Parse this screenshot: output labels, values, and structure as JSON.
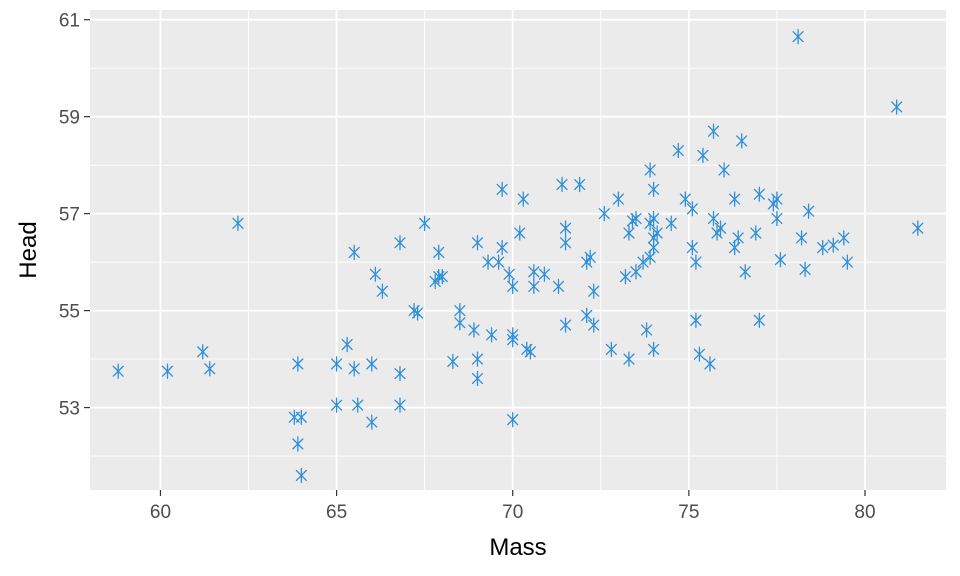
{
  "chart_data": {
    "type": "scatter",
    "title": "",
    "xlabel": "Mass",
    "ylabel": "Head",
    "xlim": [
      58.0,
      82.3
    ],
    "ylim": [
      51.3,
      61.2
    ],
    "x_ticks": [
      60,
      65,
      70,
      75,
      80
    ],
    "y_ticks": [
      53,
      55,
      57,
      59,
      61
    ],
    "x_minor": [
      57.5,
      62.5,
      67.5,
      72.5,
      77.5
    ],
    "y_minor": [
      52,
      54,
      56,
      58,
      60
    ],
    "grid": true,
    "marker": "asterisk",
    "colors": {
      "panel": "#ebebeb",
      "grid": "#ffffff",
      "point": "#2f8fd8",
      "tick_text": "#4d4d4d"
    },
    "points": [
      [
        58.8,
        53.75
      ],
      [
        60.2,
        53.75
      ],
      [
        61.2,
        54.15
      ],
      [
        61.4,
        53.8
      ],
      [
        62.2,
        56.8
      ],
      [
        63.8,
        52.8
      ],
      [
        63.9,
        53.9
      ],
      [
        63.9,
        52.25
      ],
      [
        64.0,
        52.8
      ],
      [
        64.0,
        51.6
      ],
      [
        65.0,
        53.9
      ],
      [
        65.0,
        53.05
      ],
      [
        65.3,
        54.3
      ],
      [
        65.5,
        56.2
      ],
      [
        65.5,
        53.8
      ],
      [
        65.6,
        53.05
      ],
      [
        66.0,
        53.9
      ],
      [
        66.0,
        52.7
      ],
      [
        66.1,
        55.75
      ],
      [
        66.3,
        55.4
      ],
      [
        66.8,
        56.4
      ],
      [
        66.8,
        53.7
      ],
      [
        66.8,
        53.05
      ],
      [
        67.2,
        55.0
      ],
      [
        67.3,
        54.95
      ],
      [
        67.5,
        56.8
      ],
      [
        67.8,
        55.6
      ],
      [
        67.9,
        55.7
      ],
      [
        67.9,
        56.2
      ],
      [
        68.0,
        55.7
      ],
      [
        68.3,
        53.95
      ],
      [
        68.5,
        55.0
      ],
      [
        68.5,
        54.75
      ],
      [
        68.9,
        54.6
      ],
      [
        69.0,
        56.4
      ],
      [
        69.0,
        54.0
      ],
      [
        69.0,
        53.6
      ],
      [
        69.3,
        56.0
      ],
      [
        69.4,
        54.5
      ],
      [
        69.6,
        56.0
      ],
      [
        69.7,
        56.3
      ],
      [
        69.7,
        57.5
      ],
      [
        69.9,
        55.75
      ],
      [
        70.0,
        55.5
      ],
      [
        70.0,
        54.4
      ],
      [
        70.0,
        54.5
      ],
      [
        70.0,
        52.75
      ],
      [
        70.2,
        56.6
      ],
      [
        70.3,
        57.3
      ],
      [
        70.4,
        54.2
      ],
      [
        70.5,
        54.15
      ],
      [
        70.6,
        55.8
      ],
      [
        70.6,
        55.5
      ],
      [
        70.9,
        55.75
      ],
      [
        71.3,
        55.5
      ],
      [
        71.4,
        57.6
      ],
      [
        71.5,
        56.7
      ],
      [
        71.5,
        56.4
      ],
      [
        71.5,
        54.7
      ],
      [
        71.9,
        57.6
      ],
      [
        72.1,
        54.9
      ],
      [
        72.1,
        56.0
      ],
      [
        72.2,
        56.1
      ],
      [
        72.3,
        55.4
      ],
      [
        72.3,
        54.7
      ],
      [
        72.6,
        57.0
      ],
      [
        72.8,
        54.2
      ],
      [
        73.0,
        57.3
      ],
      [
        73.2,
        55.7
      ],
      [
        73.3,
        56.6
      ],
      [
        73.3,
        54.0
      ],
      [
        73.4,
        56.85
      ],
      [
        73.5,
        55.8
      ],
      [
        73.5,
        56.9
      ],
      [
        73.7,
        56.0
      ],
      [
        73.8,
        54.6
      ],
      [
        73.9,
        56.1
      ],
      [
        73.9,
        57.9
      ],
      [
        73.9,
        56.8
      ],
      [
        74.0,
        56.9
      ],
      [
        74.0,
        57.5
      ],
      [
        74.0,
        56.5
      ],
      [
        74.0,
        56.3
      ],
      [
        74.0,
        54.2
      ],
      [
        74.1,
        56.6
      ],
      [
        74.5,
        56.8
      ],
      [
        74.7,
        58.3
      ],
      [
        74.9,
        57.3
      ],
      [
        75.1,
        57.1
      ],
      [
        75.1,
        56.3
      ],
      [
        75.2,
        56.0
      ],
      [
        75.2,
        54.8
      ],
      [
        75.3,
        54.1
      ],
      [
        75.4,
        58.2
      ],
      [
        75.6,
        53.9
      ],
      [
        75.7,
        58.7
      ],
      [
        75.7,
        56.9
      ],
      [
        75.8,
        56.6
      ],
      [
        75.9,
        56.7
      ],
      [
        76.0,
        57.9
      ],
      [
        76.3,
        57.3
      ],
      [
        76.3,
        56.3
      ],
      [
        76.4,
        56.5
      ],
      [
        76.5,
        58.5
      ],
      [
        76.6,
        55.8
      ],
      [
        76.9,
        56.6
      ],
      [
        77.0,
        57.4
      ],
      [
        77.0,
        54.8
      ],
      [
        77.4,
        57.2
      ],
      [
        77.5,
        56.9
      ],
      [
        77.5,
        57.3
      ],
      [
        77.6,
        56.05
      ],
      [
        78.1,
        60.65
      ],
      [
        78.2,
        56.5
      ],
      [
        78.3,
        55.85
      ],
      [
        78.4,
        57.05
      ],
      [
        78.8,
        56.3
      ],
      [
        79.1,
        56.35
      ],
      [
        79.4,
        56.5
      ],
      [
        79.5,
        56.0
      ],
      [
        80.9,
        59.2
      ],
      [
        81.5,
        56.7
      ]
    ]
  }
}
